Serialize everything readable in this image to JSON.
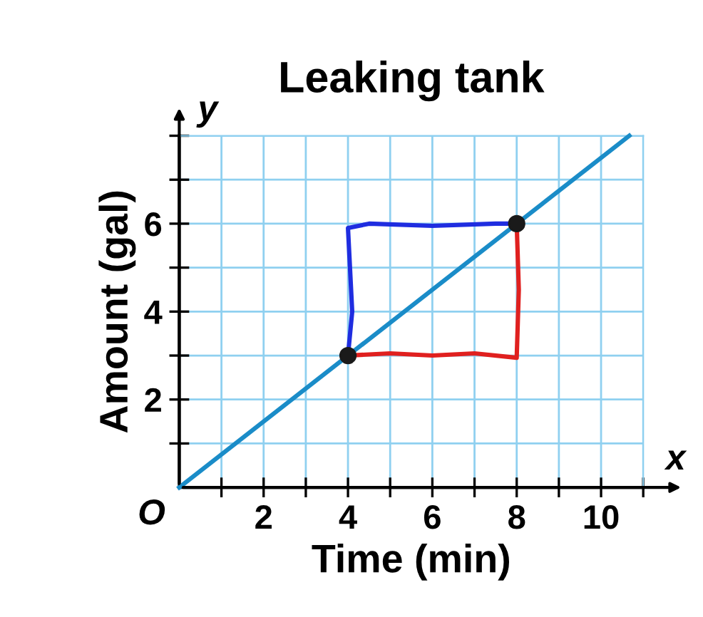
{
  "chart_data": {
    "type": "line",
    "title": "Leaking tank",
    "xlabel": "Time (min)",
    "ylabel": "Amount (gal)",
    "xlim": [
      0,
      11
    ],
    "ylim": [
      0,
      8
    ],
    "xticks": [
      {
        "value": 1,
        "label": null
      },
      2,
      {
        "value": 3,
        "label": null
      },
      4,
      {
        "value": 5,
        "label": null
      },
      6,
      {
        "value": 7,
        "label": null
      },
      8,
      {
        "value": 9,
        "label": null
      },
      10,
      {
        "value": 11,
        "label": null
      }
    ],
    "yticks": [
      {
        "value": 1,
        "label": null
      },
      2,
      {
        "value": 3,
        "label": null
      },
      4,
      {
        "value": 5,
        "label": null
      },
      6,
      {
        "value": 7,
        "label": null
      },
      {
        "value": 8,
        "label": null
      }
    ],
    "grid": true,
    "marker": "none",
    "line_style": "solid",
    "annotations": [
      {
        "text": "O",
        "x": 0,
        "y": 0
      },
      "x",
      "y"
    ],
    "series": [
      {
        "color": "#1a8cc8",
        "x": [
          0,
          10.67
        ],
        "values": [
          0,
          8
        ]
      },
      {
        "color": "#1f2de0",
        "x": [
          4,
          4.1,
          4,
          4.5,
          6,
          7.5,
          8
        ],
        "values": [
          3,
          4,
          5.9,
          6,
          5.95,
          6,
          6
        ]
      },
      {
        "color": "#e0201f",
        "x": [
          4,
          5,
          6,
          7,
          8,
          8.05,
          8
        ],
        "values": [
          3,
          3.05,
          3,
          3.05,
          2.95,
          4.5,
          6
        ]
      },
      {
        "type": "scatter",
        "color": "#1a1a1a",
        "marker": "circle",
        "x": [
          4,
          8
        ],
        "values": [
          3,
          6
        ]
      }
    ]
  }
}
